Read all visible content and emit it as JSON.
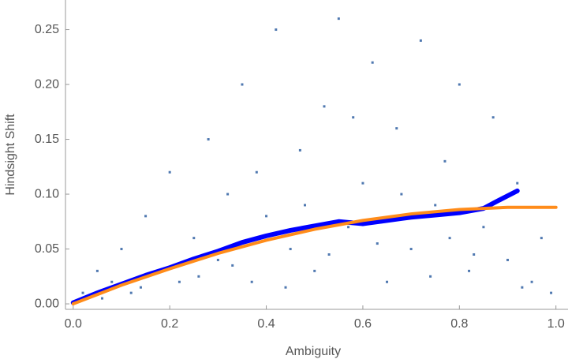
{
  "chart_data": {
    "type": "scatter",
    "xlabel": "Ambiguity",
    "ylabel": "Hindsight Shift",
    "xlim": [
      -0.016,
      1.025
    ],
    "ylim": [
      -0.005,
      0.277
    ],
    "xticks": [
      {
        "value": 0,
        "label": "0.0"
      },
      0.2,
      0.4,
      0.6,
      0.8,
      {
        "value": 1,
        "label": "1.0"
      }
    ],
    "yticks": [
      {
        "value": 0,
        "label": "0.00"
      },
      0.05,
      {
        "value": 0.1,
        "label": "0.10"
      },
      0.15,
      {
        "value": 0.2,
        "label": "0.20"
      },
      0.25
    ],
    "series": [
      {
        "mode": "points",
        "color": "#4f78b0",
        "x": [
          0.02,
          0.05,
          0.08,
          0.1,
          0.12,
          0.15,
          0.18,
          0.2,
          0.22,
          0.25,
          0.28,
          0.3,
          0.32,
          0.35,
          0.37,
          0.4,
          0.42,
          0.45,
          0.47,
          0.5,
          0.52,
          0.55,
          0.57,
          0.6,
          0.62,
          0.65,
          0.67,
          0.7,
          0.72,
          0.75,
          0.77,
          0.8,
          0.82,
          0.85,
          0.87,
          0.9,
          0.92,
          0.95,
          0.97,
          0.99,
          0.06,
          0.14,
          0.26,
          0.33,
          0.44,
          0.53,
          0.63,
          0.74,
          0.83,
          0.93,
          0.38,
          0.58,
          0.68,
          0.48,
          0.78
        ],
        "values": [
          0.01,
          0.03,
          0.02,
          0.05,
          0.01,
          0.08,
          0.03,
          0.12,
          0.02,
          0.06,
          0.15,
          0.04,
          0.1,
          0.2,
          0.02,
          0.08,
          0.25,
          0.05,
          0.14,
          0.03,
          0.18,
          0.26,
          0.07,
          0.11,
          0.22,
          0.02,
          0.16,
          0.05,
          0.24,
          0.09,
          0.13,
          0.2,
          0.03,
          0.07,
          0.17,
          0.04,
          0.11,
          0.02,
          0.06,
          0.01,
          0.005,
          0.015,
          0.025,
          0.035,
          0.015,
          0.045,
          0.055,
          0.025,
          0.045,
          0.015,
          0.12,
          0.17,
          0.1,
          0.09,
          0.06
        ]
      },
      {
        "mode": "line",
        "color": "#0000ff",
        "x": [
          0,
          0.05,
          0.1,
          0.15,
          0.2,
          0.25,
          0.3,
          0.35,
          0.4,
          0.45,
          0.5,
          0.55,
          0.6,
          0.65,
          0.7,
          0.75,
          0.8,
          0.85,
          0.88,
          0.92
        ],
        "values": [
          0.001,
          0.01,
          0.018,
          0.026,
          0.033,
          0.041,
          0.048,
          0.056,
          0.062,
          0.067,
          0.071,
          0.075,
          0.073,
          0.076,
          0.079,
          0.081,
          0.083,
          0.087,
          0.094,
          0.103
        ]
      },
      {
        "mode": "line",
        "color": "#ff8c1a",
        "x": [
          0,
          0.1,
          0.2,
          0.3,
          0.4,
          0.5,
          0.6,
          0.7,
          0.8,
          0.9,
          1.0
        ],
        "values": [
          0,
          0.017,
          0.032,
          0.046,
          0.058,
          0.068,
          0.076,
          0.082,
          0.086,
          0.088,
          0.088
        ]
      }
    ]
  }
}
